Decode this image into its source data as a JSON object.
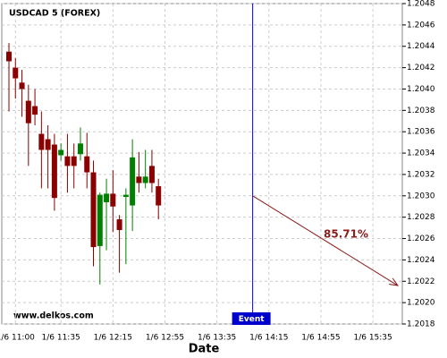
{
  "chart_data": {
    "type": "candlestick",
    "title": "USDCAD 5 (FOREX)",
    "watermark": "www.delkos.com",
    "x_label": "Date",
    "categories": [
      null,
      "1/6 11:00",
      null,
      null,
      null,
      null,
      null,
      null,
      "1/6 11:35",
      null,
      null,
      null,
      null,
      null,
      null,
      null,
      "1/6 12:15",
      null,
      null,
      null,
      null,
      null,
      null,
      null,
      "1/6 12:55",
      null,
      null,
      null,
      null,
      null,
      null,
      null,
      "1/6 13:35",
      null,
      null,
      null,
      null,
      null,
      null,
      null,
      "1/6 14:15",
      null,
      null,
      null,
      null,
      null,
      null,
      null,
      "1/6 14:55",
      null,
      null,
      null,
      null,
      null,
      null,
      null,
      "1/6 15:35",
      null,
      null,
      null,
      null
    ],
    "open": [
      1.20435,
      1.2042,
      1.20406,
      1.20389,
      1.20384,
      1.20358,
      1.20353,
      1.20348,
      1.20338,
      1.20337,
      1.20337,
      1.20339,
      1.20337,
      1.20322,
      1.20253,
      1.20294,
      1.20302,
      1.20278,
      1.20299,
      1.20291,
      1.20318,
      1.20312,
      1.20328,
      1.20309,
      null,
      null,
      null,
      null,
      null,
      null,
      null,
      null,
      null,
      null,
      null,
      null,
      null,
      null,
      null,
      null,
      null,
      null,
      null,
      null,
      null,
      null,
      null,
      null,
      null,
      null,
      null,
      null,
      null,
      null,
      null,
      null,
      null,
      null,
      null,
      null,
      null
    ],
    "high": [
      1.20443,
      1.20429,
      1.20418,
      1.20404,
      1.204,
      1.20379,
      1.20366,
      1.20358,
      1.20349,
      1.20358,
      1.20349,
      1.20364,
      1.20359,
      1.20333,
      1.20303,
      1.20316,
      1.20324,
      1.20282,
      1.20307,
      1.20353,
      1.20341,
      1.20343,
      1.20343,
      1.20316,
      null,
      null,
      null,
      null,
      null,
      null,
      null,
      null,
      null,
      null,
      null,
      null,
      null,
      null,
      null,
      null,
      null,
      null,
      null,
      null,
      null,
      null,
      null,
      null,
      null,
      null,
      null,
      null,
      null,
      null,
      null,
      null,
      null,
      null,
      null,
      null,
      null
    ],
    "low": [
      1.20379,
      1.20391,
      1.20374,
      1.20328,
      1.20366,
      1.20307,
      1.20307,
      1.20286,
      1.20333,
      1.20303,
      1.20307,
      1.20333,
      1.20307,
      1.20234,
      1.20217,
      1.20249,
      1.20266,
      1.20228,
      1.20236,
      1.20267,
      1.20303,
      1.20307,
      1.20303,
      1.20278,
      null,
      null,
      null,
      null,
      null,
      null,
      null,
      null,
      null,
      null,
      null,
      null,
      null,
      null,
      null,
      null,
      null,
      null,
      null,
      null,
      null,
      null,
      null,
      null,
      null,
      null,
      null,
      null,
      null,
      null,
      null,
      null,
      null,
      null,
      null,
      null,
      null
    ],
    "close": [
      1.20426,
      1.2041,
      1.204,
      1.20368,
      1.20376,
      1.20343,
      1.20343,
      1.20298,
      1.20343,
      1.20328,
      1.20328,
      1.20349,
      1.20322,
      1.20252,
      1.20301,
      1.20302,
      1.2029,
      1.20268,
      1.20301,
      1.20336,
      1.20312,
      1.20318,
      1.20312,
      1.20291,
      null,
      null,
      null,
      null,
      null,
      null,
      null,
      null,
      null,
      null,
      null,
      null,
      null,
      null,
      null,
      null,
      null,
      null,
      null,
      null,
      null,
      null,
      null,
      null,
      null,
      null,
      null,
      null,
      null,
      null,
      null,
      null,
      null,
      null,
      null,
      null,
      null
    ],
    "up_color": "#008000",
    "down_color": "#8b0000",
    "ylim": [
      1.2018,
      1.2048
    ],
    "yticks": [
      {
        "value": 1.2018,
        "label": "1.2018"
      },
      {
        "value": 1.202,
        "label": "1.2020"
      },
      {
        "value": 1.2022,
        "label": "1.2022"
      },
      {
        "value": 1.2024,
        "label": "1.2024"
      },
      {
        "value": 1.2026,
        "label": "1.2026"
      },
      {
        "value": 1.2028,
        "label": "1.2028"
      },
      {
        "value": 1.203,
        "label": "1.2030"
      },
      {
        "value": 1.2032,
        "label": "1.2032"
      },
      {
        "value": 1.2034,
        "label": "1.2034"
      },
      {
        "value": 1.2036,
        "label": "1.2036"
      },
      {
        "value": 1.2038,
        "label": "1.2038"
      },
      {
        "value": 1.204,
        "label": "1.2040"
      },
      {
        "value": 1.2042,
        "label": "1.2042"
      },
      {
        "value": 1.2044,
        "label": "1.2044"
      },
      {
        "value": 1.2046,
        "label": "1.2046"
      },
      {
        "value": 1.2048,
        "label": "1.2048"
      }
    ],
    "grid": true,
    "event": {
      "label": "Event",
      "color": "#0000cc"
    },
    "forecast": {
      "label": "85.71%",
      "start": 1.203,
      "end": 1.20216,
      "color": "#8b1a1a"
    }
  }
}
